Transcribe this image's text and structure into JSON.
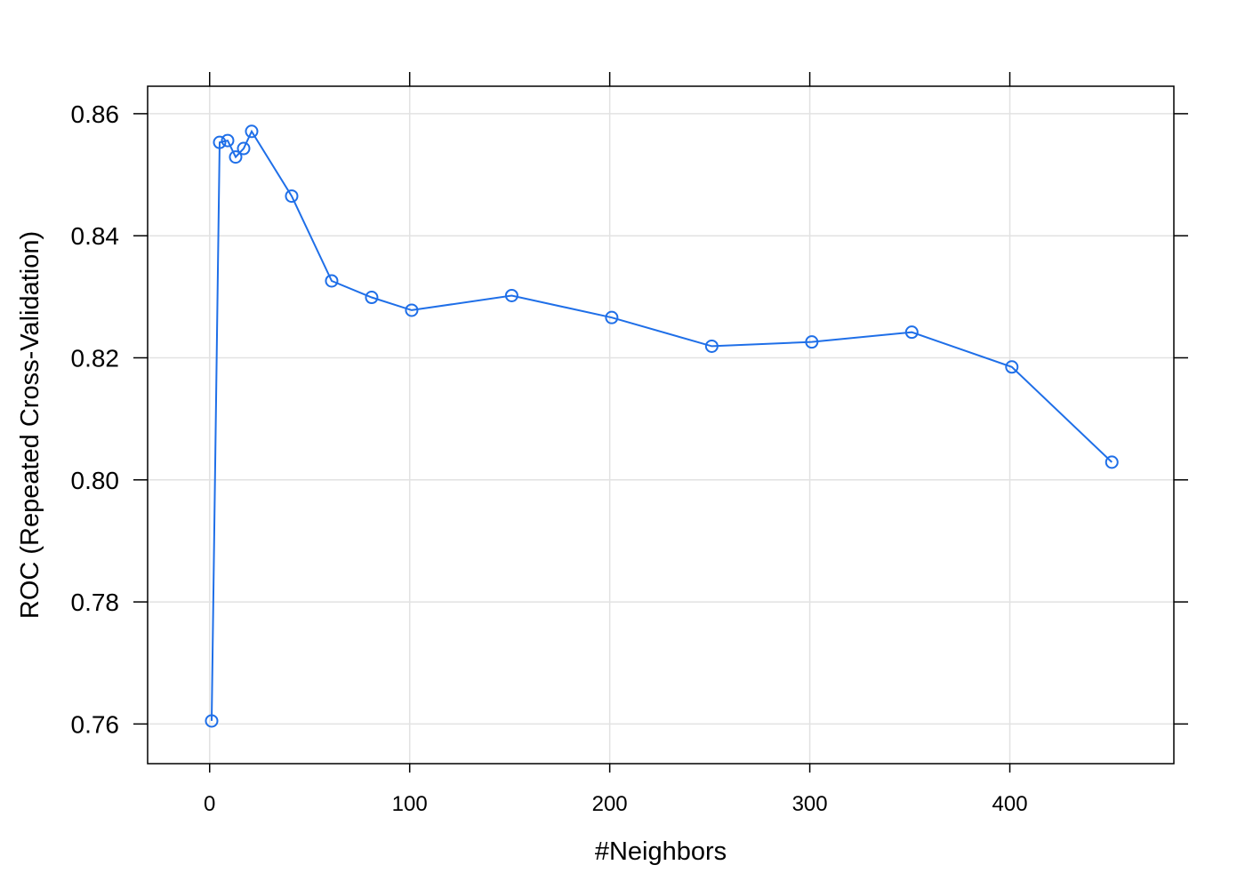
{
  "chart_data": {
    "type": "line",
    "title": "",
    "xlabel": "#Neighbors",
    "ylabel": "ROC (Repeated Cross-Validation)",
    "xlim": [
      -31,
      482
    ],
    "ylim": [
      0.7535,
      0.8645
    ],
    "x_ticks": [
      0,
      100,
      200,
      300,
      400
    ],
    "x_tick_labels": [
      "0",
      "100",
      "200",
      "300",
      "400"
    ],
    "y_ticks": [
      0.76,
      0.78,
      0.8,
      0.82,
      0.84,
      0.86
    ],
    "y_tick_labels": [
      "0.76",
      "0.78",
      "0.80",
      "0.82",
      "0.84",
      "0.86"
    ],
    "grid": true,
    "series": [
      {
        "color": "#1f6fe8",
        "marker": "open-circle",
        "x": [
          1,
          5,
          9,
          13,
          17,
          21,
          41,
          61,
          81,
          101,
          151,
          201,
          251,
          301,
          351,
          401,
          451
        ],
        "y": [
          0.7605,
          0.8553,
          0.8556,
          0.8529,
          0.8543,
          0.8571,
          0.8465,
          0.8326,
          0.8299,
          0.8278,
          0.8302,
          0.8266,
          0.8219,
          0.8226,
          0.8242,
          0.8185,
          0.8029
        ]
      }
    ]
  }
}
